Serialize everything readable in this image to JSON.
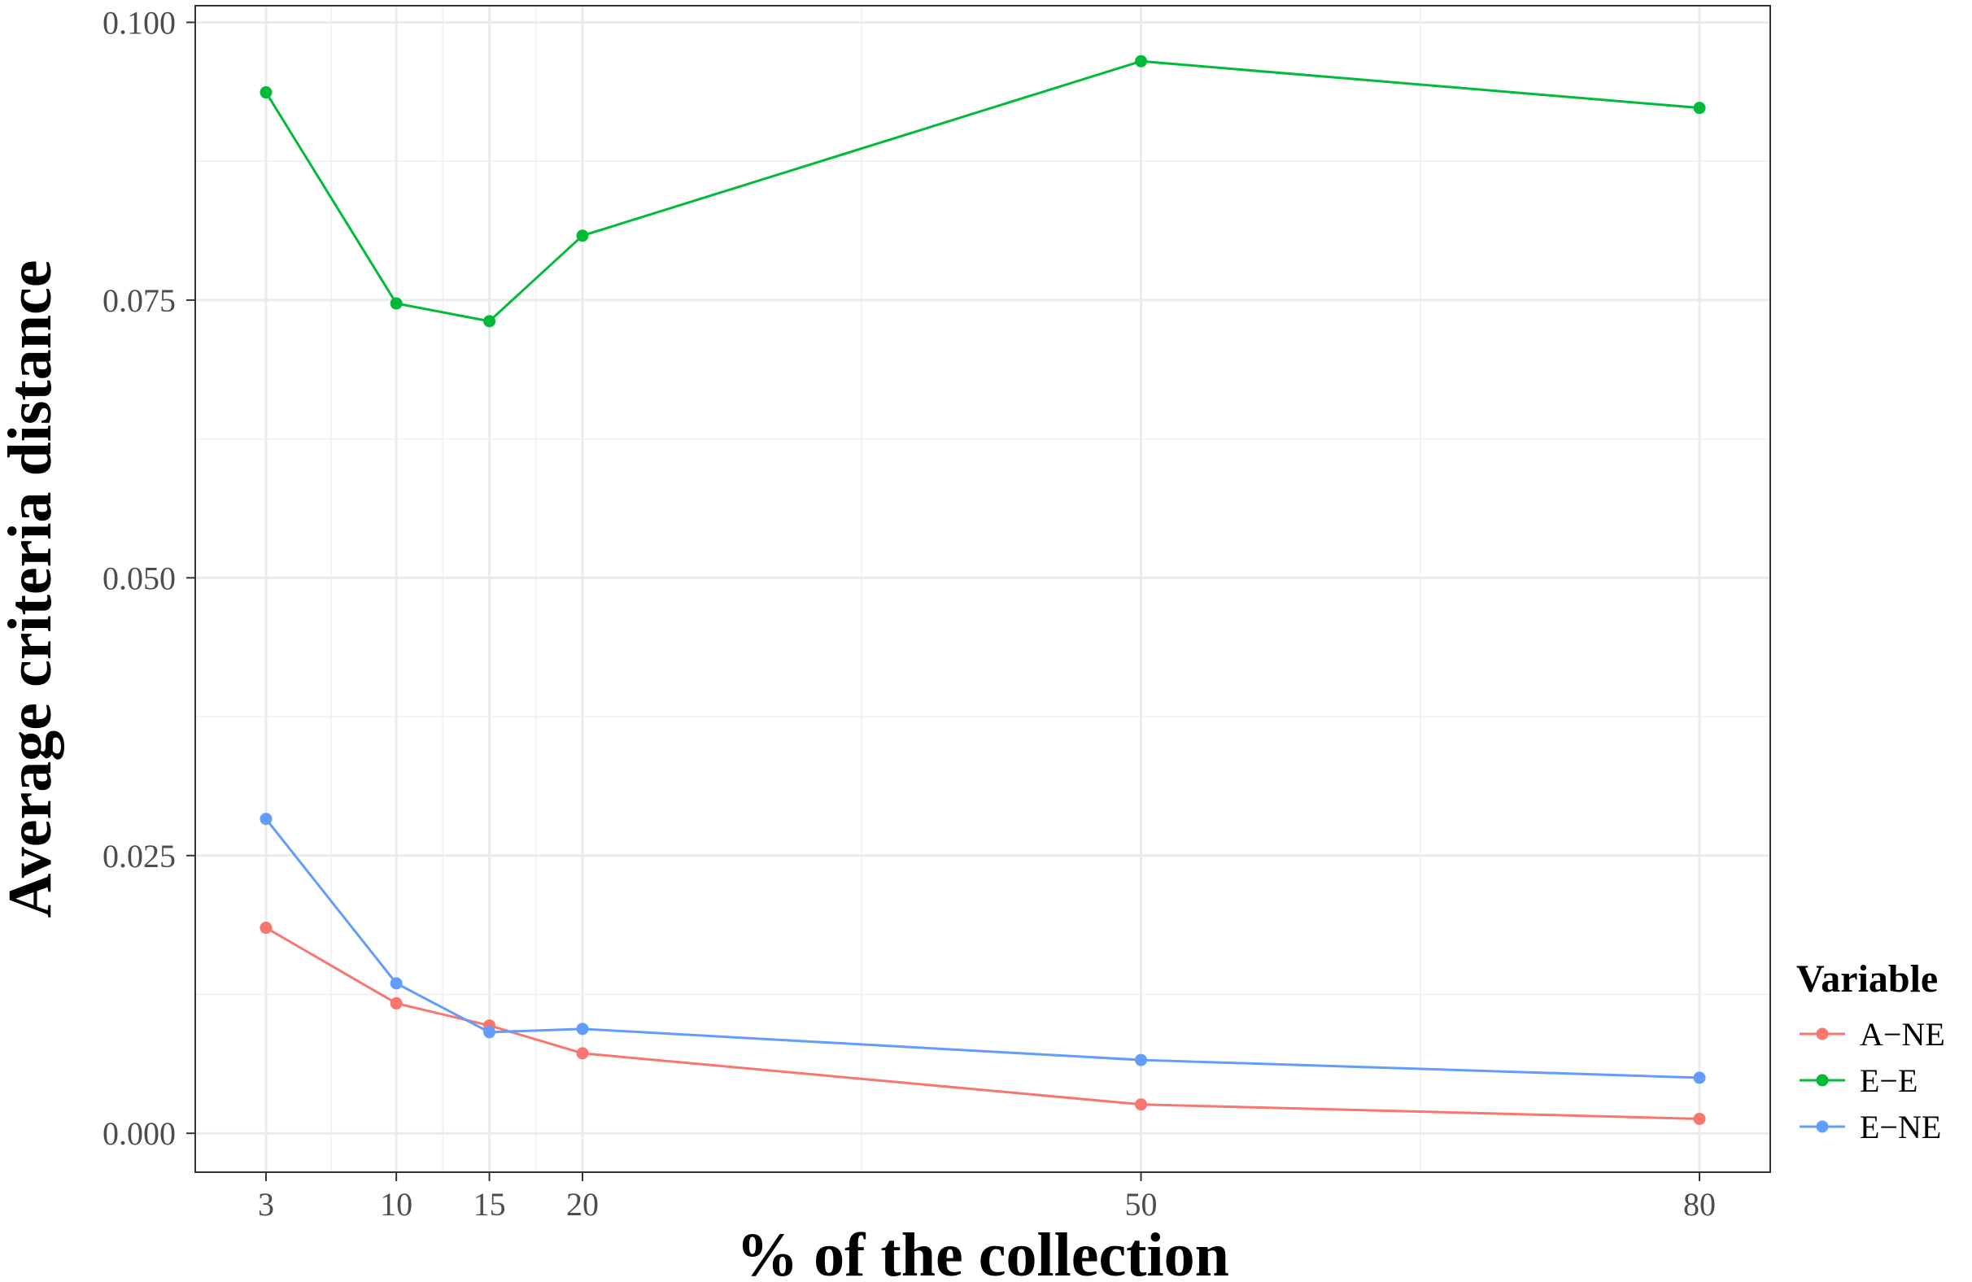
{
  "chart_data": {
    "type": "line",
    "xlabel": "% of the collection",
    "ylabel": "Average criteria distance",
    "x": [
      3,
      10,
      15,
      20,
      50,
      80
    ],
    "x_ticks": [
      3,
      10,
      15,
      20,
      50,
      80
    ],
    "x_tick_labels": [
      "3",
      "10",
      "15",
      "20",
      "50",
      "80"
    ],
    "xlim": [
      -0.8,
      83.8
    ],
    "y_ticks": [
      0,
      0.025,
      0.05,
      0.075,
      0.1
    ],
    "y_tick_labels": [
      "0.000",
      "0.025",
      "0.050",
      "0.075",
      "0.100"
    ],
    "ylim": [
      -0.0035,
      0.1015
    ],
    "grid": true,
    "legend": {
      "title": "Variable",
      "placement": "right"
    },
    "series": [
      {
        "name": "A−NE",
        "color": "#F8766D",
        "values": [
          0.0185,
          0.0117,
          0.0097,
          0.0072,
          0.0026,
          0.0013
        ]
      },
      {
        "name": "E−E",
        "color": "#00BA38",
        "values": [
          0.0937,
          0.0747,
          0.0731,
          0.0808,
          0.0965,
          0.0923
        ]
      },
      {
        "name": "E−NE",
        "color": "#619CFF",
        "values": [
          0.0283,
          0.0135,
          0.0091,
          0.0094,
          0.0066,
          0.005
        ]
      }
    ]
  }
}
